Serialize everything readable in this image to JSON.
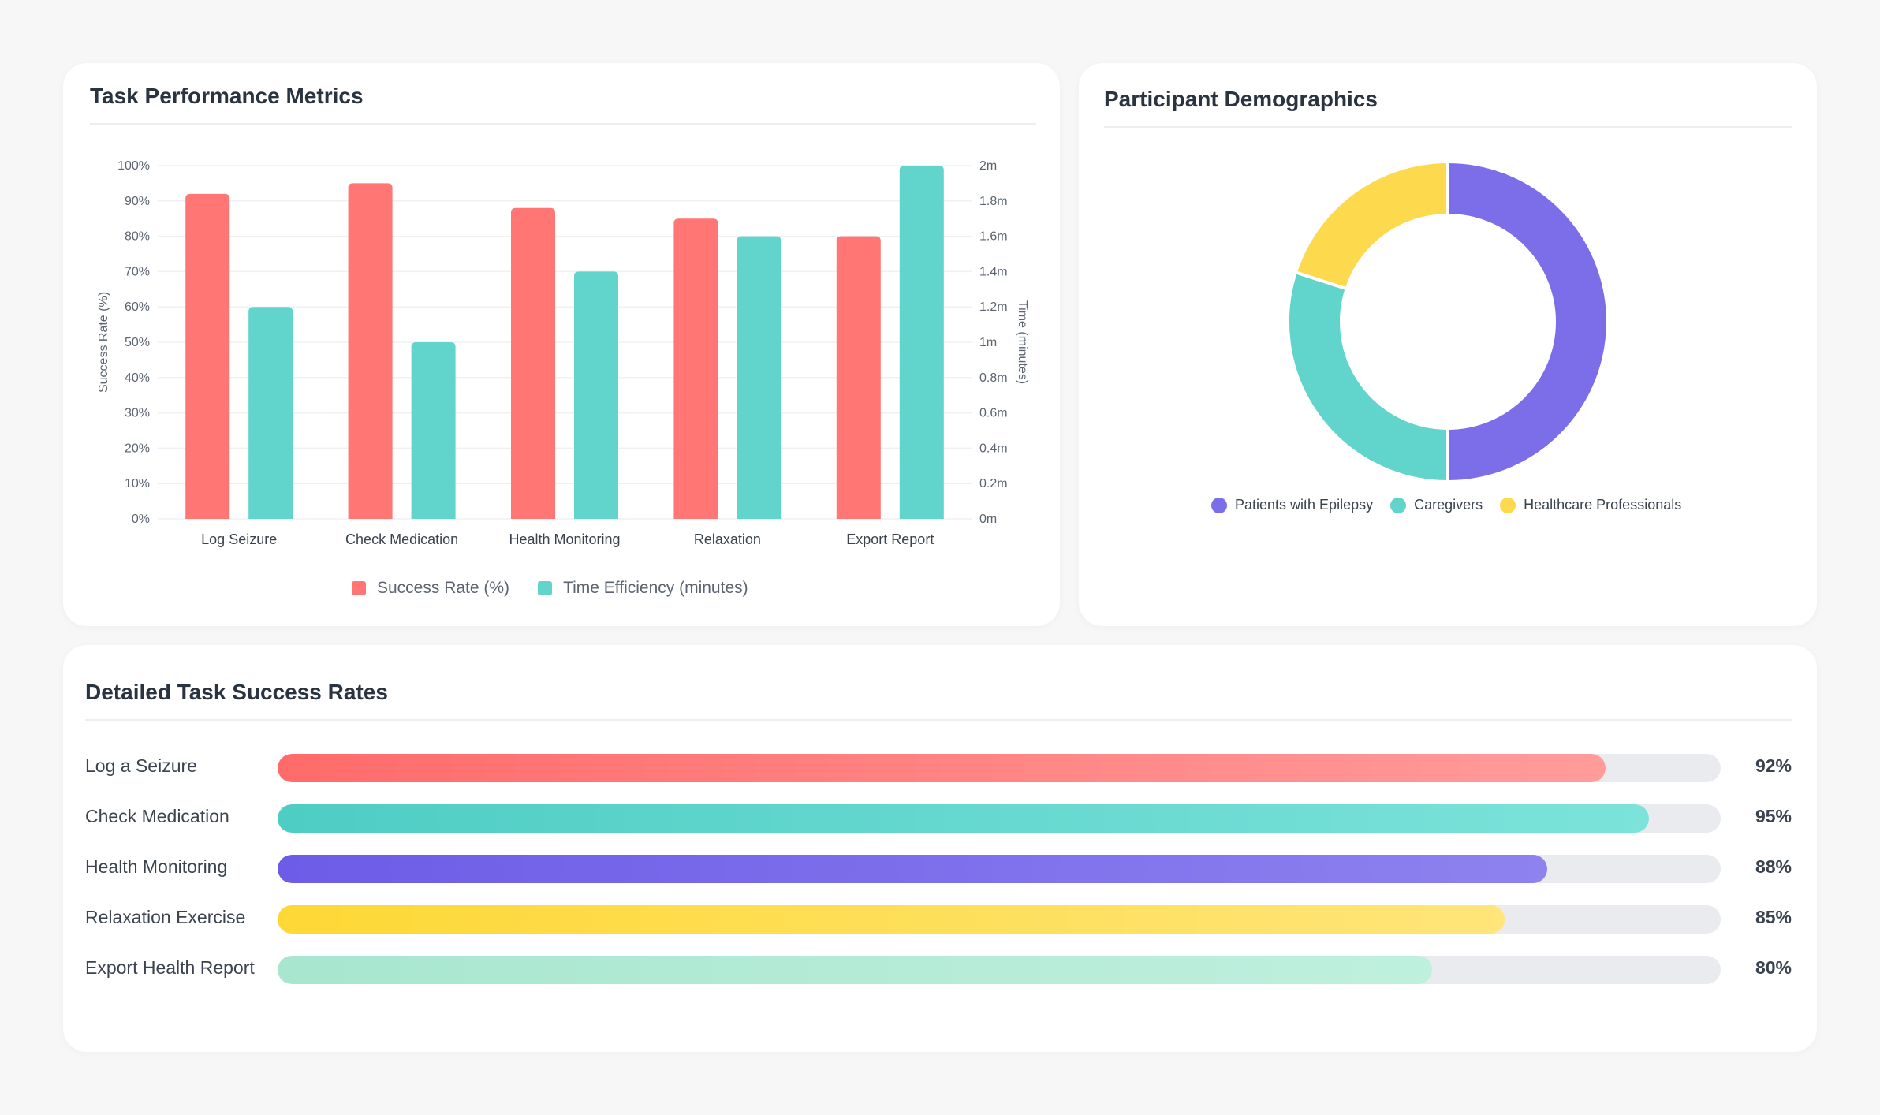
{
  "colors": {
    "coral": "#ff7675",
    "teal": "#61d4cb",
    "purple": "#7b6ee8",
    "yellow": "#fdd94e",
    "mint": "#b3ead7"
  },
  "performance": {
    "title": "Task Performance Metrics",
    "legend": [
      "Success Rate (%)",
      "Time Efficiency (minutes)"
    ]
  },
  "demographics": {
    "title": "Participant Demographics"
  },
  "detail": {
    "title": "Detailed Task Success Rates",
    "rows": [
      {
        "label": "Log a Seizure",
        "value": 92,
        "value_label": "92%",
        "gradient": [
          "#ff6b6b",
          "#ff9c9a"
        ]
      },
      {
        "label": "Check Medication",
        "value": 95,
        "value_label": "95%",
        "gradient": [
          "#4ecdc4",
          "#7ce3da"
        ]
      },
      {
        "label": "Health Monitoring",
        "value": 88,
        "value_label": "88%",
        "gradient": [
          "#6c5ce7",
          "#8e82ef"
        ]
      },
      {
        "label": "Relaxation Exercise",
        "value": 85,
        "value_label": "85%",
        "gradient": [
          "#fdd835",
          "#ffe57a"
        ]
      },
      {
        "label": "Export Health Report",
        "value": 80,
        "value_label": "80%",
        "gradient": [
          "#a8e6cf",
          "#bff0de"
        ]
      }
    ]
  },
  "chart_data": [
    {
      "type": "bar",
      "title": "Task Performance Metrics",
      "categories": [
        "Log Seizure",
        "Check Medication",
        "Health Monitoring",
        "Relaxation",
        "Export Report"
      ],
      "series": [
        {
          "name": "Success Rate (%)",
          "axis": "left",
          "values": [
            92,
            95,
            88,
            85,
            80
          ],
          "color": "#ff7675"
        },
        {
          "name": "Time Efficiency (minutes)",
          "axis": "right",
          "values": [
            1.2,
            1.0,
            1.4,
            1.6,
            2.0
          ],
          "color": "#61d4cb"
        }
      ],
      "ylabel": "Success Rate (%)",
      "y2label": "Time (minutes)",
      "ylim": [
        0,
        100
      ],
      "y2lim": [
        0,
        2
      ],
      "yticks": [
        "0%",
        "10%",
        "20%",
        "30%",
        "40%",
        "50%",
        "60%",
        "70%",
        "80%",
        "90%",
        "100%"
      ],
      "y2ticks": [
        "0m",
        "0.2m",
        "0.4m",
        "0.6m",
        "0.8m",
        "1m",
        "1.2m",
        "1.4m",
        "1.6m",
        "1.8m",
        "2m"
      ],
      "grid": true,
      "legend": "bottom"
    },
    {
      "type": "pie",
      "style": "doughnut",
      "title": "Participant Demographics",
      "labels": [
        "Patients with Epilepsy",
        "Caregivers",
        "Healthcare Professionals"
      ],
      "values": [
        50,
        30,
        20
      ],
      "colors": [
        "#7b6ee8",
        "#61d4cb",
        "#fdd94e"
      ],
      "legend": "bottom"
    }
  ]
}
